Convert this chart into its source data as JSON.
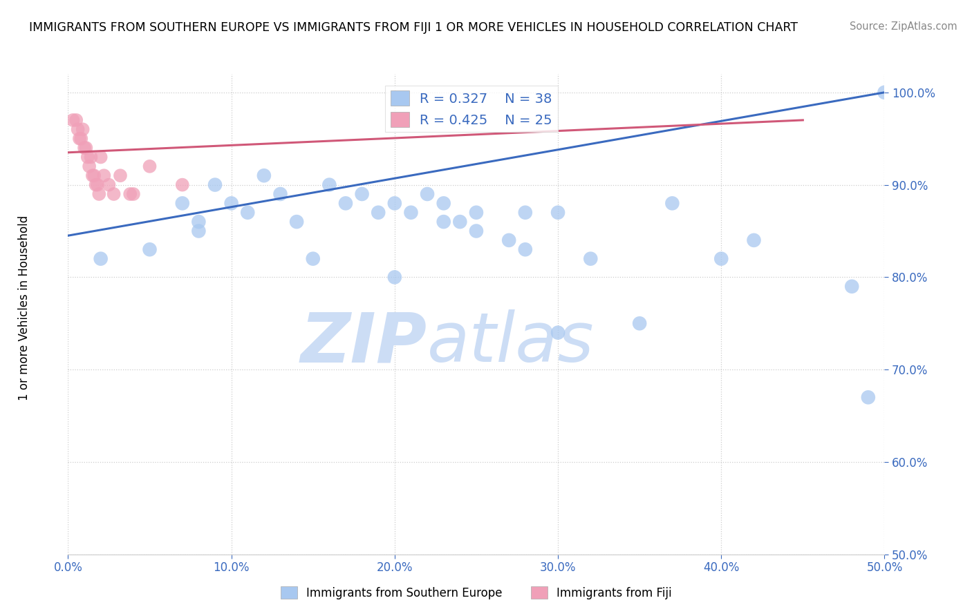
{
  "title": "IMMIGRANTS FROM SOUTHERN EUROPE VS IMMIGRANTS FROM FIJI 1 OR MORE VEHICLES IN HOUSEHOLD CORRELATION CHART",
  "source": "Source: ZipAtlas.com",
  "ylabel": "1 or more Vehicles in Household",
  "legend_label_blue": "Immigrants from Southern Europe",
  "legend_label_pink": "Immigrants from Fiji",
  "R_blue": 0.327,
  "N_blue": 38,
  "R_pink": 0.425,
  "N_pink": 25,
  "xlim": [
    0.0,
    0.5
  ],
  "ylim": [
    0.5,
    1.02
  ],
  "xticks": [
    0.0,
    0.1,
    0.2,
    0.3,
    0.4,
    0.5
  ],
  "yticks": [
    0.5,
    0.6,
    0.7,
    0.8,
    0.9,
    1.0
  ],
  "color_blue": "#a8c8f0",
  "color_blue_line": "#3a6abf",
  "color_pink": "#f0a0b8",
  "color_pink_line": "#d05878",
  "watermark_zip": "ZIP",
  "watermark_atlas": "atlas",
  "blue_x": [
    0.02,
    0.05,
    0.07,
    0.08,
    0.09,
    0.1,
    0.11,
    0.12,
    0.13,
    0.14,
    0.16,
    0.17,
    0.18,
    0.19,
    0.2,
    0.21,
    0.22,
    0.23,
    0.24,
    0.25,
    0.27,
    0.28,
    0.3,
    0.32,
    0.35,
    0.37,
    0.4,
    0.42,
    0.48,
    0.49,
    0.5,
    0.08,
    0.15,
    0.2,
    0.23,
    0.25,
    0.28,
    0.3
  ],
  "blue_y": [
    0.82,
    0.83,
    0.88,
    0.85,
    0.9,
    0.88,
    0.87,
    0.91,
    0.89,
    0.86,
    0.9,
    0.88,
    0.89,
    0.87,
    0.88,
    0.87,
    0.89,
    0.88,
    0.86,
    0.87,
    0.84,
    0.83,
    0.87,
    0.82,
    0.75,
    0.88,
    0.82,
    0.84,
    0.79,
    0.67,
    1.0,
    0.86,
    0.82,
    0.8,
    0.86,
    0.85,
    0.87,
    0.74
  ],
  "pink_x": [
    0.003,
    0.005,
    0.006,
    0.007,
    0.008,
    0.009,
    0.01,
    0.011,
    0.012,
    0.013,
    0.014,
    0.015,
    0.016,
    0.017,
    0.018,
    0.019,
    0.02,
    0.022,
    0.025,
    0.028,
    0.032,
    0.038,
    0.04,
    0.05,
    0.07
  ],
  "pink_y": [
    0.97,
    0.97,
    0.96,
    0.95,
    0.95,
    0.96,
    0.94,
    0.94,
    0.93,
    0.92,
    0.93,
    0.91,
    0.91,
    0.9,
    0.9,
    0.89,
    0.93,
    0.91,
    0.9,
    0.89,
    0.91,
    0.89,
    0.89,
    0.92,
    0.9
  ],
  "blue_line_x": [
    0.0,
    0.5
  ],
  "blue_line_y": [
    0.845,
    1.0
  ],
  "pink_line_x": [
    0.0,
    0.45
  ],
  "pink_line_y": [
    0.935,
    0.97
  ]
}
